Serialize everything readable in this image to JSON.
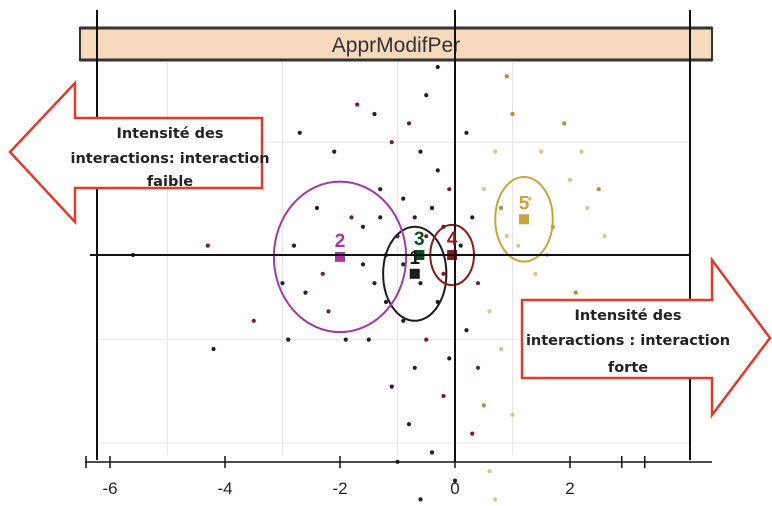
{
  "chart_data": {
    "type": "scatter",
    "title": "ApprModifPer",
    "xlabel": "",
    "ylabel": "",
    "xlim": [
      -6.3,
      2.8
    ],
    "ylim": [
      -3.3,
      2.2
    ],
    "x_ticks": [
      -6,
      -4,
      -2,
      0,
      2
    ],
    "grid": true,
    "colors": {
      "strip_fill": "#f7d9bd",
      "cluster_1": "#1b1b1b",
      "cluster_2": "#a03aa6",
      "cluster_3": "#0d4d1f",
      "cluster_4": "#8b1a1a",
      "cluster_5": "#c9a43c",
      "arrow_border": "#e23a2a"
    },
    "clusters": [
      {
        "label": "1",
        "center": [
          -0.7,
          -0.2
        ],
        "ellipse_radii": [
          0.55,
          0.5
        ]
      },
      {
        "label": "2",
        "center": [
          -2.0,
          -0.02
        ],
        "ellipse_radii": [
          1.15,
          0.8
        ]
      },
      {
        "label": "3",
        "center": [
          -0.62,
          0.0
        ],
        "ellipse_radii": [
          0.1,
          0.1
        ]
      },
      {
        "label": "4",
        "center": [
          -0.05,
          0.0
        ],
        "ellipse_radii": [
          0.38,
          0.32
        ]
      },
      {
        "label": "5",
        "center": [
          1.2,
          0.38
        ],
        "ellipse_radii": [
          0.5,
          0.45
        ]
      }
    ],
    "annotations": [
      {
        "lines": [
          "Intensité des",
          "interactions: interaction",
          "faible"
        ],
        "direction": "left"
      },
      {
        "lines": [
          "Intensité des",
          "interactions : interaction",
          "forte"
        ],
        "direction": "right"
      }
    ],
    "points": [
      [
        -0.8,
        1.4
      ],
      [
        -0.6,
        1.1
      ],
      [
        -0.3,
        0.9
      ],
      [
        -1.3,
        0.7
      ],
      [
        -1.1,
        1.2
      ],
      [
        -0.9,
        0.6
      ],
      [
        -0.4,
        0.5
      ],
      [
        -1.6,
        0.3
      ],
      [
        -1.0,
        0.2
      ],
      [
        -0.7,
        0.4
      ],
      [
        -0.2,
        0.3
      ],
      [
        -1.4,
        -0.3
      ],
      [
        -1.8,
        0.4
      ],
      [
        -2.4,
        0.5
      ],
      [
        -2.8,
        0.1
      ],
      [
        -2.6,
        -0.4
      ],
      [
        -2.2,
        -0.6
      ],
      [
        -1.5,
        -0.9
      ],
      [
        -1.2,
        -0.5
      ],
      [
        -0.9,
        -0.7
      ],
      [
        -0.5,
        -0.9
      ],
      [
        -0.3,
        -0.5
      ],
      [
        -0.1,
        -1.1
      ],
      [
        0.2,
        -0.8
      ],
      [
        0.4,
        -0.3
      ],
      [
        0.6,
        -0.6
      ],
      [
        0.8,
        -1.0
      ],
      [
        0.5,
        -1.6
      ],
      [
        0.3,
        -1.9
      ],
      [
        -0.4,
        -2.1
      ],
      [
        -0.8,
        -1.8
      ],
      [
        0.6,
        -2.3
      ],
      [
        0.7,
        -2.6
      ],
      [
        -1.1,
        -1.4
      ],
      [
        -1.9,
        -0.9
      ],
      [
        -3.0,
        -0.3
      ],
      [
        -3.5,
        -0.7
      ],
      [
        -4.2,
        -1.0
      ],
      [
        -3.6,
        0.9
      ],
      [
        -2.7,
        1.3
      ],
      [
        -1.7,
        1.6
      ],
      [
        -0.5,
        1.7
      ],
      [
        0.2,
        1.3
      ],
      [
        0.7,
        1.1
      ],
      [
        -0.1,
        0.7
      ],
      [
        0.3,
        0.4
      ],
      [
        0.9,
        0.2
      ],
      [
        1.3,
        0.6
      ],
      [
        1.7,
        0.3
      ],
      [
        2.0,
        0.8
      ],
      [
        1.5,
        1.1
      ],
      [
        1.0,
        1.5
      ],
      [
        2.3,
        0.5
      ],
      [
        2.6,
        0.2
      ],
      [
        2.1,
        -0.4
      ],
      [
        1.8,
        -0.8
      ],
      [
        1.2,
        -0.5
      ],
      [
        2.4,
        -0.9
      ],
      [
        1.6,
        -1.1
      ],
      [
        1.0,
        -1.7
      ],
      [
        0.9,
        1.9
      ],
      [
        -0.3,
        2.0
      ],
      [
        -1.4,
        1.5
      ],
      [
        -2.1,
        1.1
      ],
      [
        -0.2,
        -0.2
      ],
      [
        -0.6,
        -0.3
      ],
      [
        -1.6,
        -0.1
      ],
      [
        -2.9,
        -0.9
      ],
      [
        -2.3,
        -0.2
      ],
      [
        -1.2,
        0.0
      ],
      [
        0.1,
        0.1
      ],
      [
        0.5,
        0.7
      ],
      [
        -0.5,
        0.2
      ],
      [
        -0.9,
        -0.1
      ],
      [
        -1.3,
        0.4
      ],
      [
        1.9,
        1.4
      ],
      [
        2.2,
        1.1
      ],
      [
        1.4,
        -0.2
      ],
      [
        0.8,
        0.5
      ],
      [
        -0.7,
        -1.2
      ],
      [
        -0.2,
        -1.5
      ],
      [
        0.0,
        -2.4
      ],
      [
        -0.6,
        -2.6
      ],
      [
        -1.0,
        -2.2
      ],
      [
        0.4,
        -1.2
      ],
      [
        1.1,
        0.1
      ],
      [
        1.6,
        0.0
      ],
      [
        2.5,
        0.7
      ],
      [
        -4.3,
        0.1
      ],
      [
        -5.6,
        0.0
      ]
    ]
  }
}
